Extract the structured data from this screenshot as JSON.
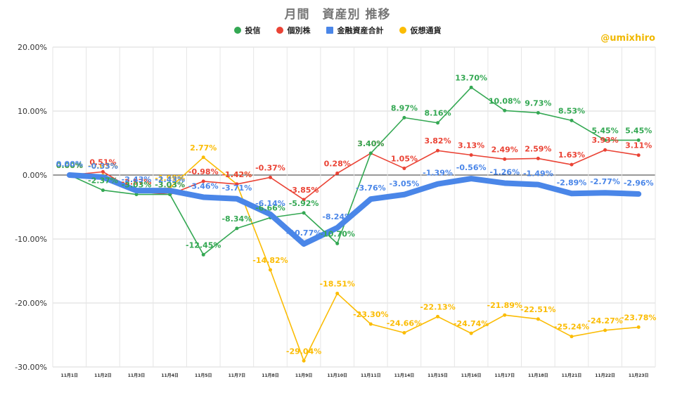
{
  "chart_data": {
    "type": "line",
    "title": "月間　資産別 推移",
    "watermark": "@umixhiro",
    "categories": [
      "11月1日",
      "11月2日",
      "11月3日",
      "11月4日",
      "11月5日",
      "11月7日",
      "11月8日",
      "11月9日",
      "11月10日",
      "11月11日",
      "11月14日",
      "11月15日",
      "11月16日",
      "11月17日",
      "11月18日",
      "11月21日",
      "11月22日",
      "11月23日"
    ],
    "ylim": [
      -30,
      20
    ],
    "yticks": [
      20,
      10,
      0,
      -10,
      -20,
      -30
    ],
    "ytick_labels": [
      "20.00%",
      "10.00%",
      "0.00%",
      "-10.00%",
      "-20.00%",
      "-30.00%"
    ],
    "grid": true,
    "legend_position": "top",
    "series": [
      {
        "name": "投信",
        "color": "#34a853",
        "values": [
          0.0,
          -2.37,
          -3.03,
          -3.03,
          -12.45,
          -8.34,
          -6.66,
          -5.92,
          -10.7,
          3.4,
          8.97,
          8.16,
          13.7,
          10.08,
          9.73,
          8.53,
          5.45,
          5.45
        ],
        "labels": [
          "0.00%",
          "-2.37%",
          "-3.03%",
          "-3.03%",
          "-12.45%",
          "-8.34%",
          "-6.66%",
          "-5.92%",
          "-10.70%",
          "3.40%",
          "8.97%",
          "8.16%",
          "13.70%",
          "10.08%",
          "9.73%",
          "8.53%",
          "5.45%",
          "5.45%"
        ]
      },
      {
        "name": "個別株",
        "color": "#ea4335",
        "values": [
          0.0,
          0.51,
          -2.57,
          -3.03,
          -0.98,
          -1.42,
          -0.37,
          -3.85,
          0.28,
          3.4,
          1.05,
          3.82,
          3.13,
          2.49,
          2.59,
          1.63,
          3.93,
          3.11
        ],
        "labels": [
          "0.00%",
          "0.51%",
          "-2.57%",
          "-3.03%",
          "-0.98%",
          "-1.42%",
          "-0.37%",
          "-3.85%",
          "0.28%",
          "3.40%",
          "1.05%",
          "3.82%",
          "3.13%",
          "2.49%",
          "2.59%",
          "1.63%",
          "3.93%",
          "3.11%"
        ]
      },
      {
        "name": "金融資産合計",
        "color": "#4a86e8",
        "values": [
          0.0,
          -0.33,
          -2.43,
          -2.43,
          -3.46,
          -3.71,
          -6.14,
          -10.77,
          -8.24,
          -3.76,
          -3.05,
          -1.39,
          -0.56,
          -1.26,
          -1.49,
          -2.89,
          -2.77,
          -2.96
        ],
        "labels": [
          "0.00%",
          "-0.33%",
          "-2.43%",
          "-2.43%",
          "-3.46%",
          "-3.71%",
          "-6.14%",
          "-10.77%",
          "-8.24%",
          "-3.76%",
          "-3.05%",
          "-1.39%",
          "-0.56%",
          "-1.26%",
          "-1.49%",
          "-2.89%",
          "-2.77%",
          "-2.96%"
        ]
      },
      {
        "name": "仮想通貨",
        "color": "#fbbc04",
        "values": [
          0.0,
          -0.03,
          -2.57,
          -1.99,
          2.77,
          -1.42,
          -14.82,
          -29.04,
          -18.51,
          -23.3,
          -24.66,
          -22.13,
          -24.74,
          -21.89,
          -22.51,
          -25.24,
          -24.27,
          -23.78
        ],
        "labels": [
          "0.00%",
          "-0.03%",
          "-2.57%",
          "-1.99%",
          "2.77%",
          "-1.42%",
          "-14.82%",
          "-29.04%",
          "-18.51%",
          "-23.30%",
          "-24.66%",
          "-22.13%",
          "-24.74%",
          "-21.89%",
          "-22.51%",
          "-25.24%",
          "-24.27%",
          "-23.78%"
        ]
      }
    ]
  }
}
